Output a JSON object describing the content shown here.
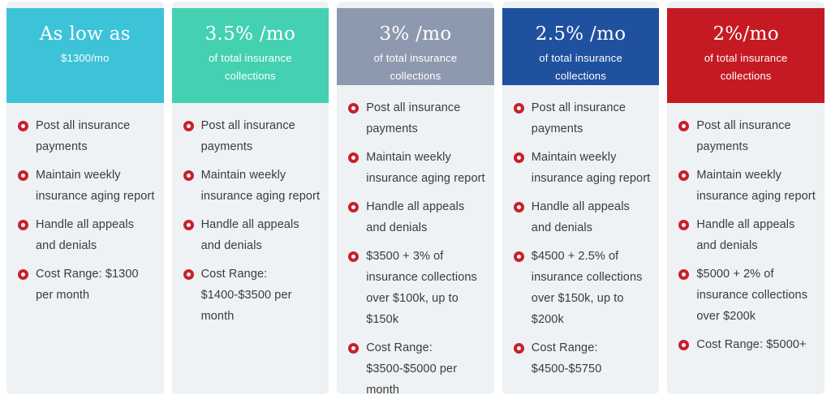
{
  "page": {
    "background": "#ffffff",
    "card_background": "#eef2f5",
    "bullet_color": "#c9202a",
    "body_text_color": "#3b3b3b"
  },
  "columns": [
    {
      "header": {
        "title": "As low as",
        "subtitle": "$1300/mo",
        "background": "#3dc3d8"
      },
      "items": [
        "Post all insurance payments",
        "Maintain weekly insurance aging report",
        "Handle all appeals and denials",
        "Cost Range: $1300 per month"
      ]
    },
    {
      "header": {
        "title": "3.5% /mo",
        "subtitle": "of total insurance collections",
        "background": "#44d1b2"
      },
      "items": [
        "Post all insurance payments",
        "Maintain weekly insurance aging report",
        "Handle all appeals and denials",
        "Cost Range: $1400-$3500 per month"
      ]
    },
    {
      "header": {
        "title": "3% /mo",
        "subtitle": "of total insurance collections",
        "background": "#8d99ae"
      },
      "items": [
        "Post all insurance payments",
        "Maintain weekly insurance aging report",
        "Handle all appeals and denials",
        "$3500 + 3% of insurance collections over $100k, up to $150k",
        "Cost Range: $3500-$5000 per month"
      ]
    },
    {
      "header": {
        "title": "2.5% /mo",
        "subtitle": "of total insurance collections",
        "background": "#1f519f"
      },
      "items": [
        "Post all insurance payments",
        "Maintain weekly insurance aging report",
        "Handle all appeals and denials",
        "$4500 + 2.5% of insurance collections over $150k, up to $200k",
        "Cost Range: $4500-$5750"
      ]
    },
    {
      "header": {
        "title": "2%/mo",
        "subtitle": "of total insurance collections",
        "background": "#c61a22"
      },
      "items": [
        "Post all insurance payments",
        "Maintain weekly insurance aging report",
        "Handle all appeals and denials",
        "$5000 + 2% of insurance collections over $200k",
        "Cost Range: $5000+"
      ]
    }
  ]
}
